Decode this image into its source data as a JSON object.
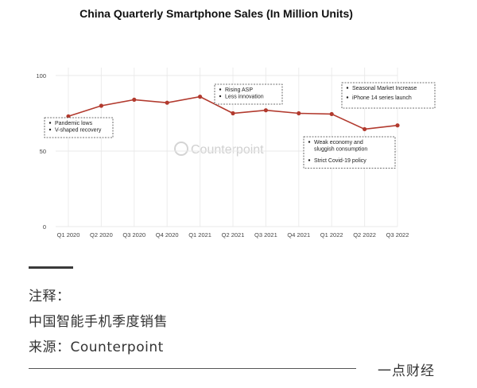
{
  "chart_data": {
    "type": "line",
    "title": "China Quarterly Smartphone Sales (In Million Units)",
    "categories": [
      "Q1 2020",
      "Q2 2020",
      "Q3 2020",
      "Q4 2020",
      "Q1 2021",
      "Q2 2021",
      "Q3 2021",
      "Q4 2021",
      "Q1 2022",
      "Q2 2022",
      "Q3 2022"
    ],
    "series": [
      {
        "values": [
          73,
          80,
          84,
          82,
          86,
          75,
          77,
          75,
          74.5,
          64.5,
          67
        ]
      }
    ],
    "ylim": [
      0,
      100
    ],
    "yticks": [
      "0",
      "50",
      "100"
    ],
    "grid": true,
    "line_color": "#b23a2e",
    "annotations": [
      {
        "category": "Q1 2020",
        "lines": [
          "Pandemic lows",
          "V-shaped recovery"
        ]
      },
      {
        "category": "Q2 2021",
        "lines": [
          "Rising ASP",
          "Less innovation"
        ]
      },
      {
        "category": "Q2 2022",
        "lines": [
          "Weak economy and",
          "sluggish consumption",
          "Strict Covid-19 policy"
        ]
      },
      {
        "category": "Q3 2022",
        "lines": [
          "Seasonal Market Increase",
          "iPhone 14 series launch"
        ]
      }
    ],
    "watermark": "Counterpoint"
  },
  "notes": {
    "label": "注释：",
    "body": "中国智能手机季度销售",
    "source": "来源：Counterpoint"
  },
  "footer": {
    "brand": "一点财经"
  }
}
